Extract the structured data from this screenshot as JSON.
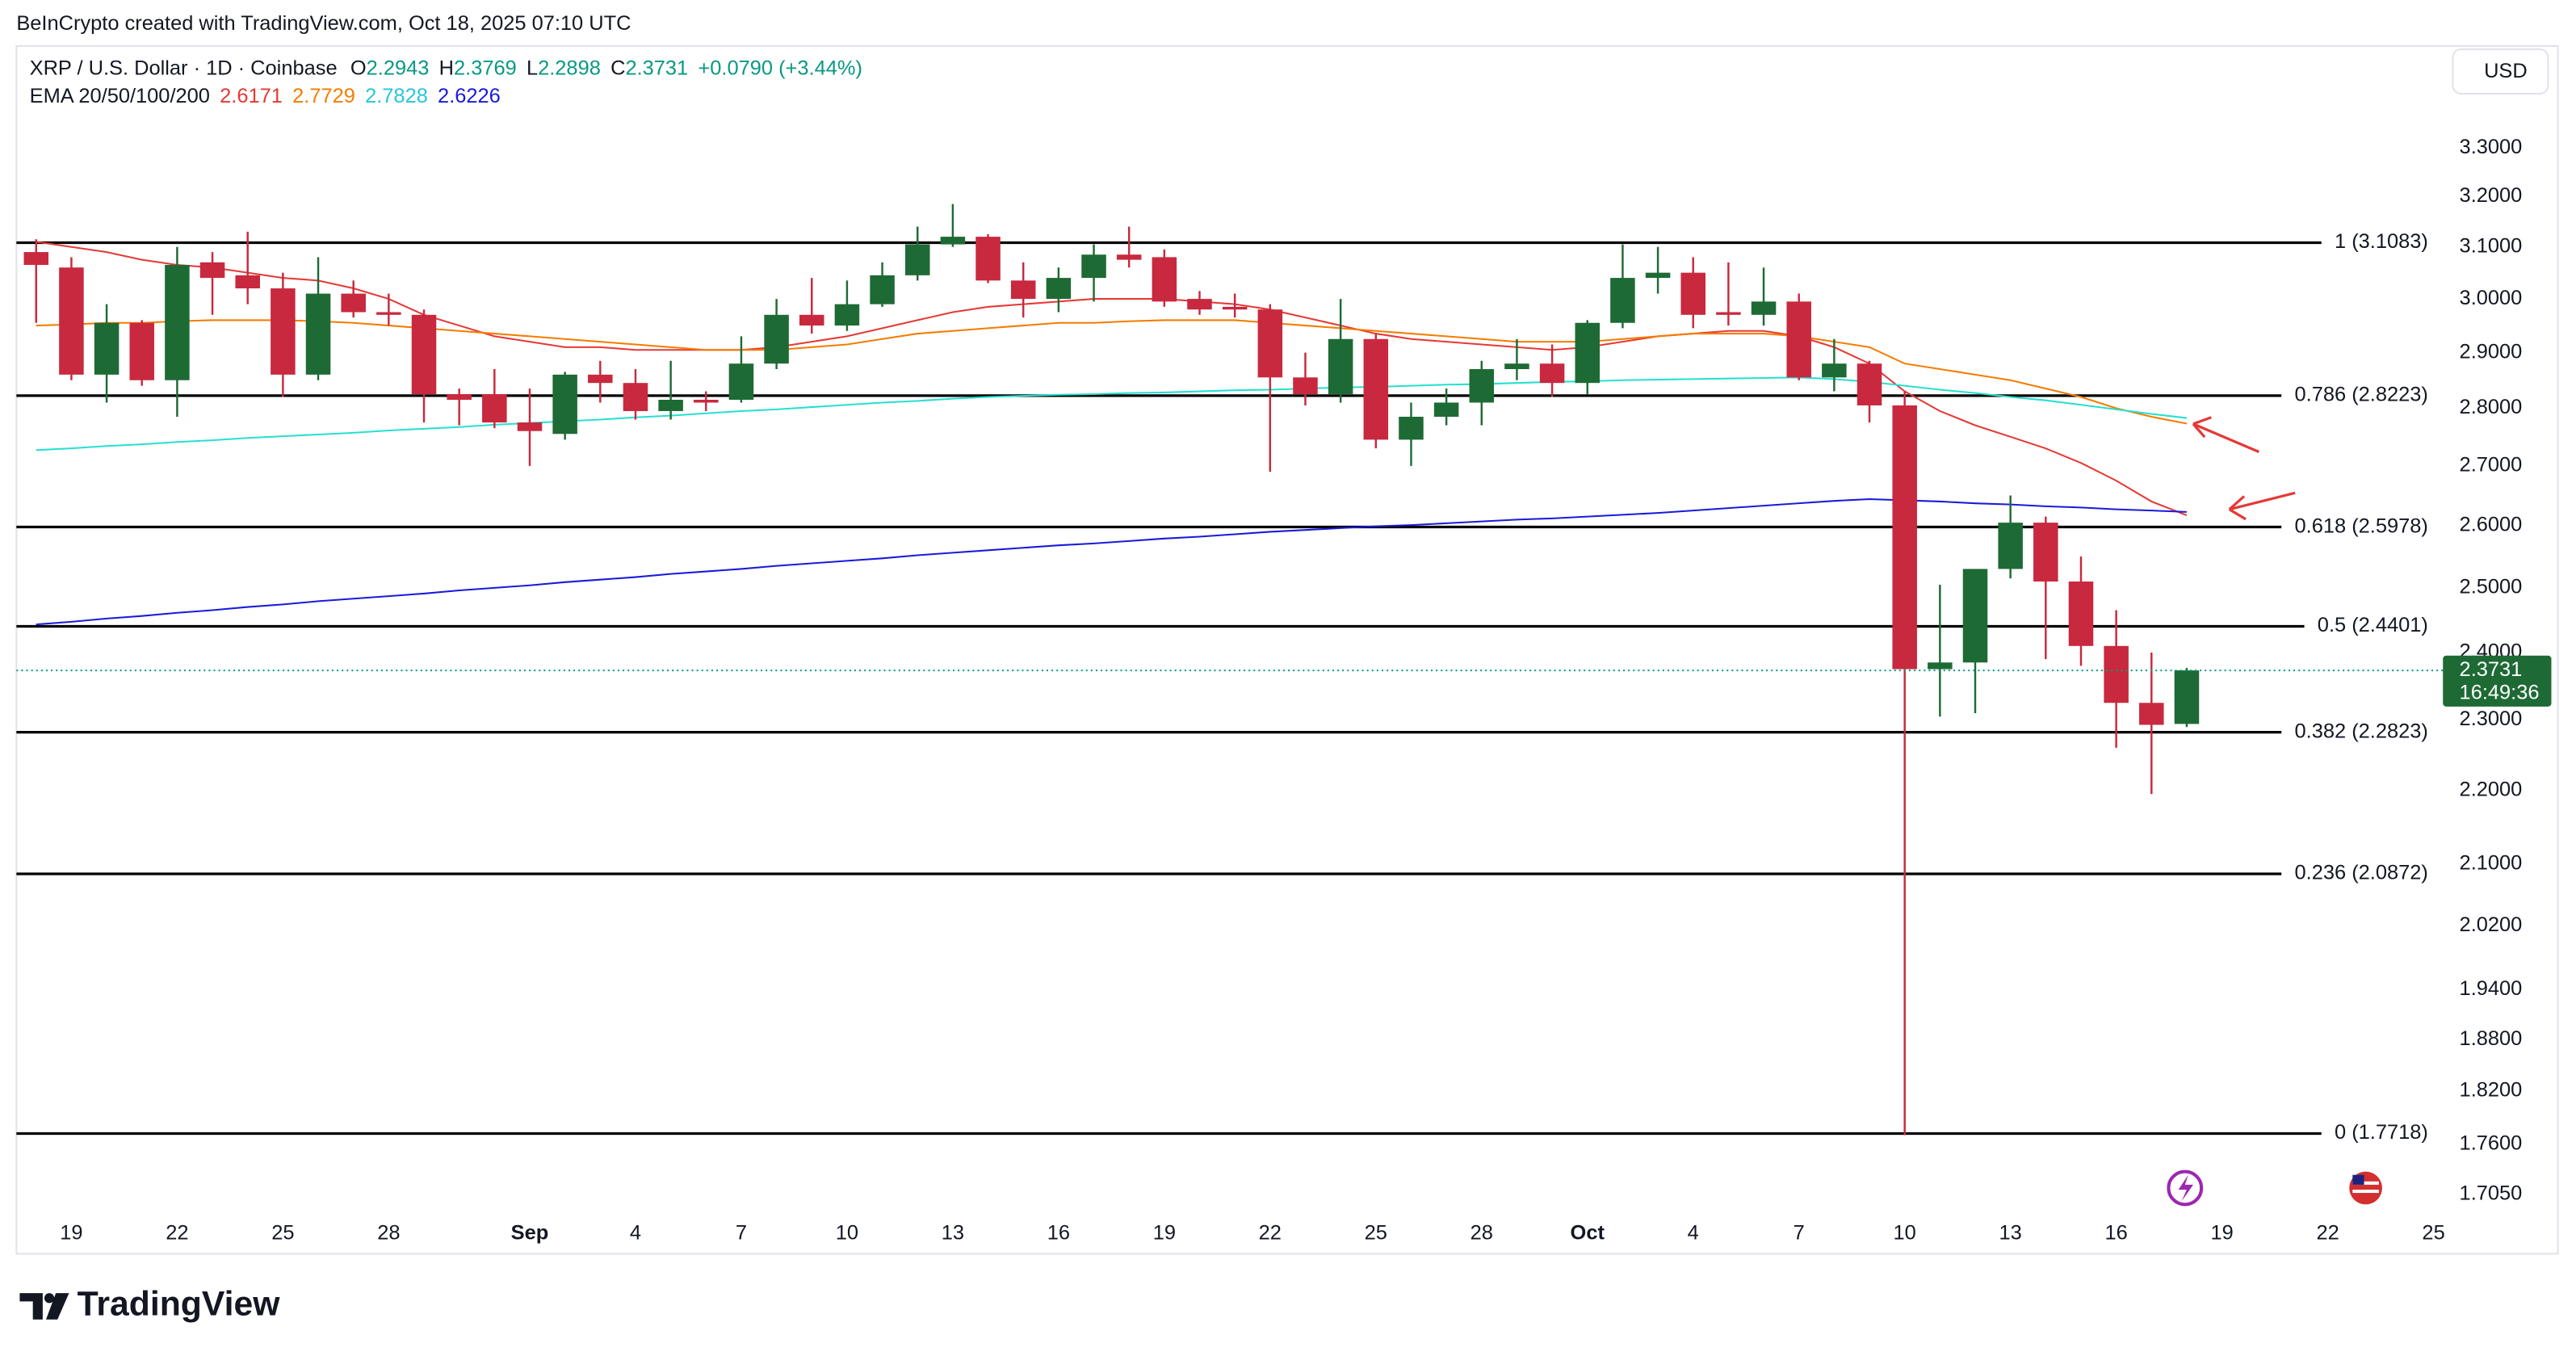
{
  "header": {
    "attribution": "BeInCrypto created with TradingView.com, Oct 18, 2025 07:10 UTC",
    "logo": "TradingView"
  },
  "chart_data": {
    "type": "candlestick",
    "title": "XRP / U.S. Dollar · 1D · Coinbase",
    "legend_labels": {
      "open": "O",
      "high": "H",
      "low": "L",
      "close": "C"
    },
    "change": "+0.0790 (+3.44%)",
    "indicator": "EMA 20/50/100/200",
    "currency": "USD",
    "countdown": "16:49:36",
    "up_color": "#1e6a35",
    "down_color": "#c8293e",
    "last_color": "#089981",
    "categories": [
      null,
      "19",
      null,
      null,
      "22",
      null,
      null,
      "25",
      null,
      null,
      "28",
      null,
      null,
      null,
      "Sep",
      null,
      null,
      "4",
      null,
      null,
      "7",
      null,
      null,
      "10",
      null,
      null,
      "13",
      null,
      null,
      "16",
      null,
      null,
      "19",
      null,
      null,
      "22",
      null,
      null,
      "25",
      null,
      null,
      "28",
      null,
      null,
      "Oct",
      null,
      null,
      "4",
      null,
      null,
      "7",
      null,
      null,
      "10",
      null,
      null,
      "13",
      null,
      null,
      "16",
      null,
      null,
      "19",
      null,
      null,
      "22",
      null,
      null,
      "25"
    ],
    "open": [
      3.09,
      3.06,
      2.86,
      2.955,
      2.85,
      3.07,
      3.045,
      3.02,
      2.86,
      3.01,
      2.975,
      2.97,
      2.825,
      2.825,
      2.775,
      2.755,
      2.86,
      2.845,
      2.795,
      2.815,
      2.815,
      2.88,
      2.97,
      2.95,
      2.99,
      3.045,
      3.105,
      3.12,
      3.035,
      3.0,
      3.04,
      3.085,
      3.08,
      3.0,
      2.985,
      2.98,
      2.855,
      2.825,
      2.925,
      2.745,
      2.785,
      2.81,
      2.87,
      2.88,
      2.845,
      2.955,
      3.04,
      3.05,
      2.975,
      2.97,
      2.995,
      2.855,
      2.88,
      2.805,
      2.375,
      2.385,
      2.53,
      2.605,
      2.51,
      2.41,
      2.325,
      2.2943,
      null,
      null,
      null,
      null,
      null,
      null,
      null
    ],
    "high": [
      3.115,
      3.08,
      2.99,
      2.96,
      3.1,
      3.09,
      3.13,
      3.05,
      3.08,
      3.035,
      3.01,
      2.98,
      2.835,
      2.87,
      2.835,
      2.865,
      2.885,
      2.87,
      2.885,
      2.83,
      2.93,
      3.0,
      3.04,
      3.035,
      3.07,
      3.14,
      3.185,
      3.125,
      3.07,
      3.06,
      3.105,
      3.14,
      3.095,
      3.015,
      3.01,
      2.99,
      2.9,
      3.0,
      2.935,
      2.81,
      2.835,
      2.885,
      2.925,
      2.915,
      2.96,
      3.105,
      3.1,
      3.08,
      3.07,
      3.06,
      3.01,
      2.925,
      2.885,
      2.83,
      2.505,
      2.53,
      2.65,
      2.615,
      2.55,
      2.465,
      2.4,
      2.3769,
      null,
      null,
      null,
      null,
      null,
      null,
      null
    ],
    "low": [
      2.955,
      2.85,
      2.81,
      2.84,
      2.785,
      2.97,
      2.99,
      2.82,
      2.85,
      2.965,
      2.95,
      2.775,
      2.77,
      2.765,
      2.7,
      2.745,
      2.81,
      2.78,
      2.78,
      2.795,
      2.81,
      2.87,
      2.935,
      2.94,
      2.985,
      3.035,
      3.1,
      3.03,
      2.965,
      2.975,
      2.995,
      3.06,
      2.985,
      2.97,
      2.965,
      2.69,
      2.805,
      2.81,
      2.73,
      2.7,
      2.77,
      2.77,
      2.85,
      2.82,
      2.825,
      2.945,
      3.01,
      2.945,
      2.95,
      2.95,
      2.85,
      2.83,
      2.775,
      1.77,
      2.305,
      2.31,
      2.515,
      2.39,
      2.38,
      2.26,
      2.195,
      2.2898,
      null,
      null,
      null,
      null,
      null,
      null,
      null
    ],
    "close": [
      3.065,
      2.86,
      2.955,
      2.85,
      3.065,
      3.04,
      3.02,
      2.86,
      3.01,
      2.975,
      2.97,
      2.825,
      2.815,
      2.775,
      2.76,
      2.86,
      2.845,
      2.795,
      2.815,
      2.81,
      2.88,
      2.97,
      2.95,
      2.99,
      3.045,
      3.105,
      3.12,
      3.035,
      3.0,
      3.04,
      3.085,
      3.075,
      2.995,
      2.98,
      2.98,
      2.855,
      2.825,
      2.925,
      2.745,
      2.785,
      2.81,
      2.87,
      2.88,
      2.845,
      2.955,
      3.04,
      3.05,
      2.97,
      2.97,
      2.995,
      2.855,
      2.88,
      2.805,
      2.375,
      2.385,
      2.53,
      2.605,
      2.51,
      2.41,
      2.325,
      2.293,
      2.3731,
      null,
      null,
      null,
      null,
      null,
      null,
      null
    ],
    "series": [
      {
        "color": "#e53935",
        "values": [
          3.11,
          3.1,
          3.09,
          3.075,
          3.065,
          3.06,
          3.05,
          3.04,
          3.035,
          3.02,
          3.0,
          2.97,
          2.95,
          2.93,
          2.92,
          2.91,
          2.91,
          2.905,
          2.905,
          2.905,
          2.905,
          2.91,
          2.92,
          2.93,
          2.945,
          2.96,
          2.975,
          2.985,
          2.99,
          2.995,
          3.0,
          3.0,
          3.0,
          2.995,
          2.99,
          2.98,
          2.965,
          2.95,
          2.935,
          2.925,
          2.92,
          2.915,
          2.91,
          2.905,
          2.91,
          2.92,
          2.93,
          2.935,
          2.94,
          2.94,
          2.93,
          2.91,
          2.88,
          2.83,
          2.795,
          2.77,
          2.75,
          2.73,
          2.705,
          2.675,
          2.64,
          2.6171,
          null,
          null,
          null,
          null,
          null,
          null,
          null
        ]
      },
      {
        "color": "#f57c00",
        "values": [
          2.95,
          2.952,
          2.955,
          2.955,
          2.958,
          2.96,
          2.96,
          2.96,
          2.958,
          2.955,
          2.95,
          2.945,
          2.94,
          2.935,
          2.93,
          2.925,
          2.92,
          2.915,
          2.91,
          2.905,
          2.905,
          2.905,
          2.91,
          2.915,
          2.925,
          2.935,
          2.94,
          2.945,
          2.95,
          2.955,
          2.955,
          2.958,
          2.96,
          2.96,
          2.96,
          2.955,
          2.95,
          2.945,
          2.94,
          2.935,
          2.93,
          2.925,
          2.92,
          2.92,
          2.92,
          2.925,
          2.93,
          2.935,
          2.935,
          2.935,
          2.93,
          2.92,
          2.91,
          2.88,
          2.87,
          2.86,
          2.85,
          2.835,
          2.82,
          2.8,
          2.785,
          2.7729,
          null,
          null,
          null,
          null,
          null,
          null,
          null
        ]
      },
      {
        "color": "#26e0d0",
        "values": [
          2.727,
          2.73,
          2.734,
          2.737,
          2.741,
          2.744,
          2.748,
          2.751,
          2.754,
          2.757,
          2.761,
          2.764,
          2.767,
          2.771,
          2.774,
          2.777,
          2.78,
          2.784,
          2.787,
          2.791,
          2.795,
          2.798,
          2.802,
          2.806,
          2.81,
          2.813,
          2.817,
          2.82,
          2.822,
          2.824,
          2.825,
          2.827,
          2.828,
          2.83,
          2.832,
          2.833,
          2.835,
          2.837,
          2.838,
          2.84,
          2.842,
          2.843,
          2.845,
          2.847,
          2.848,
          2.85,
          2.851,
          2.852,
          2.853,
          2.854,
          2.855,
          2.852,
          2.847,
          2.84,
          2.833,
          2.827,
          2.82,
          2.814,
          2.806,
          2.798,
          2.79,
          2.7828,
          null,
          null,
          null,
          null,
          null,
          null,
          null
        ]
      },
      {
        "color": "#1a1adb",
        "values": [
          2.443,
          2.447,
          2.452,
          2.456,
          2.461,
          2.465,
          2.47,
          2.474,
          2.479,
          2.483,
          2.487,
          2.491,
          2.496,
          2.5,
          2.504,
          2.509,
          2.513,
          2.517,
          2.522,
          2.526,
          2.53,
          2.535,
          2.539,
          2.543,
          2.547,
          2.552,
          2.556,
          2.56,
          2.564,
          2.568,
          2.571,
          2.575,
          2.579,
          2.582,
          2.586,
          2.59,
          2.593,
          2.596,
          2.599,
          2.601,
          2.604,
          2.607,
          2.61,
          2.612,
          2.615,
          2.618,
          2.621,
          2.625,
          2.629,
          2.633,
          2.637,
          2.641,
          2.644,
          2.642,
          2.64,
          2.637,
          2.635,
          2.632,
          2.63,
          2.627,
          2.625,
          2.6226,
          null,
          null,
          null,
          null,
          null,
          null,
          null
        ]
      }
    ],
    "log_scale": true,
    "ylim": [
      1.682,
      3.519
    ],
    "yticks": [
      {
        "value": 3.3,
        "label": "3.3000"
      },
      {
        "value": 3.2,
        "label": "3.2000"
      },
      {
        "value": 3.1,
        "label": "3.1000"
      },
      {
        "value": 3.0,
        "label": "3.0000"
      },
      {
        "value": 2.9,
        "label": "2.9000"
      },
      {
        "value": 2.8,
        "label": "2.8000"
      },
      {
        "value": 2.7,
        "label": "2.7000"
      },
      {
        "value": 2.6,
        "label": "2.6000"
      },
      {
        "value": 2.5,
        "label": "2.5000"
      },
      {
        "value": 2.4,
        "label": "2.4000"
      },
      {
        "value": 2.3,
        "label": "2.3000"
      },
      {
        "value": 2.2,
        "label": "2.2000"
      },
      {
        "value": 2.1,
        "label": "2.1000"
      },
      {
        "value": 2.02,
        "label": "2.0200"
      },
      {
        "value": 1.94,
        "label": "1.9400"
      },
      {
        "value": 1.88,
        "label": "1.8800"
      },
      {
        "value": 1.82,
        "label": "1.8200"
      },
      {
        "value": 1.76,
        "label": "1.7600"
      },
      {
        "value": 1.705,
        "label": "1.7050"
      }
    ],
    "level_color": "#000000",
    "levels": [
      {
        "label": "1 (3.1083)",
        "value": 3.1083
      },
      {
        "label": "0.786 (2.8223)",
        "value": 2.8223
      },
      {
        "label": "0.618 (2.5978)",
        "value": 2.5978
      },
      {
        "label": "0.5 (2.4401)",
        "value": 2.4401
      },
      {
        "label": "0.382 (2.2823)",
        "value": 2.2823
      },
      {
        "label": "0.236 (2.0872)",
        "value": 2.0872
      },
      {
        "label": "0 (1.7718)",
        "value": 1.7718
      }
    ]
  }
}
